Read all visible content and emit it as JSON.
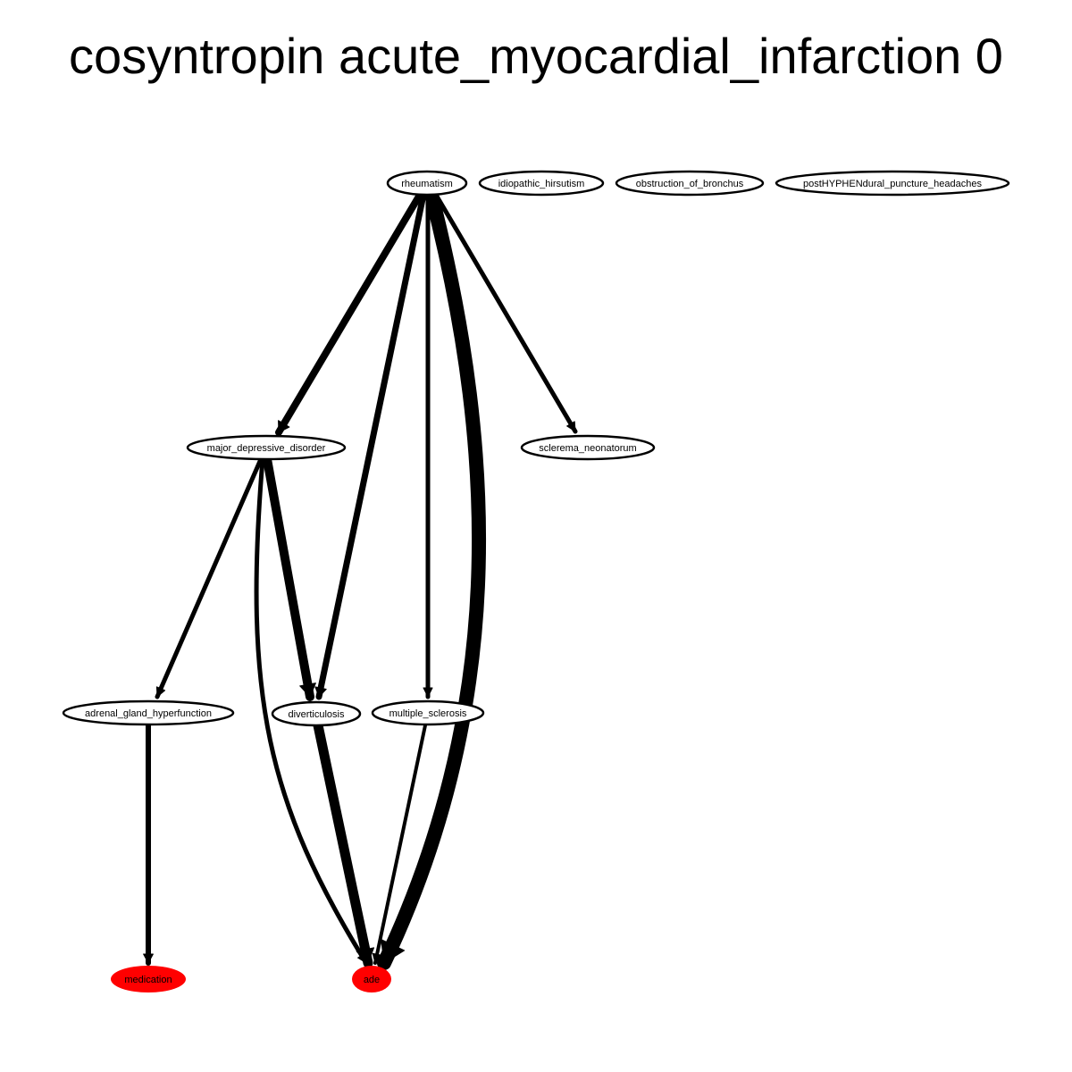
{
  "title": "cosyntropin acute_myocardial_infarction 0",
  "nodes": [
    {
      "id": "rheumatism",
      "label": "rheumatism",
      "fill": "#ffffff"
    },
    {
      "id": "idiopathic_hirsutism",
      "label": "idiopathic_hirsutism",
      "fill": "#ffffff"
    },
    {
      "id": "obstruction_of_bronchus",
      "label": "obstruction_of_bronchus",
      "fill": "#ffffff"
    },
    {
      "id": "postHYPHENdural_puncture_headaches",
      "label": "postHYPHENdural_puncture_headaches",
      "fill": "#ffffff"
    },
    {
      "id": "major_depressive_disorder",
      "label": "major_depressive_disorder",
      "fill": "#ffffff"
    },
    {
      "id": "sclerema_neonatorum",
      "label": "sclerema_neonatorum",
      "fill": "#ffffff"
    },
    {
      "id": "adrenal_gland_hyperfunction",
      "label": "adrenal_gland_hyperfunction",
      "fill": "#ffffff"
    },
    {
      "id": "diverticulosis",
      "label": "diverticulosis",
      "fill": "#ffffff"
    },
    {
      "id": "multiple_sclerosis",
      "label": "multiple_sclerosis",
      "fill": "#ffffff"
    },
    {
      "id": "medication",
      "label": "medication",
      "fill": "#ff0000"
    },
    {
      "id": "ade",
      "label": "ade",
      "fill": "#ff0000"
    }
  ],
  "edges": [
    {
      "from": "rheumatism",
      "to": "major_depressive_disorder",
      "weight": 8
    },
    {
      "from": "rheumatism",
      "to": "diverticulosis",
      "weight": 7
    },
    {
      "from": "rheumatism",
      "to": "multiple_sclerosis",
      "weight": 5
    },
    {
      "from": "rheumatism",
      "to": "ade",
      "weight": 16
    },
    {
      "from": "rheumatism",
      "to": "sclerema_neonatorum",
      "weight": 5
    },
    {
      "from": "major_depressive_disorder",
      "to": "adrenal_gland_hyperfunction",
      "weight": 5
    },
    {
      "from": "major_depressive_disorder",
      "to": "diverticulosis",
      "weight": 10
    },
    {
      "from": "major_depressive_disorder",
      "to": "ade",
      "weight": 5
    },
    {
      "from": "adrenal_gland_hyperfunction",
      "to": "medication",
      "weight": 6
    },
    {
      "from": "diverticulosis",
      "to": "ade",
      "weight": 11
    },
    {
      "from": "multiple_sclerosis",
      "to": "ade",
      "weight": 4
    }
  ]
}
